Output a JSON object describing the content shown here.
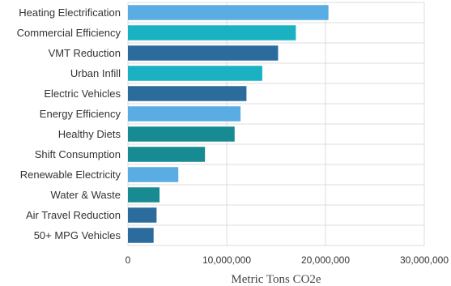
{
  "chart_data": {
    "type": "bar",
    "orientation": "horizontal",
    "categories": [
      "Heating Electrification",
      "Commercial Efficiency",
      "VMT Reduction",
      "Urban Infill",
      "Electric Vehicles",
      "Energy Efficiency",
      "Healthy Diets",
      "Shift Consumption",
      "Renewable Electricity",
      "Water & Waste",
      "Air Travel Reduction",
      "50+ MPG Vehicles"
    ],
    "values": [
      20300000,
      17000000,
      15200000,
      13600000,
      12000000,
      11400000,
      10800000,
      7800000,
      5100000,
      3200000,
      2900000,
      2600000
    ],
    "colors": [
      "#5aade2",
      "#1ab2c2",
      "#2b6c9c",
      "#1ab2c2",
      "#2b6c9c",
      "#5aade2",
      "#178b91",
      "#178b91",
      "#5aade2",
      "#178b91",
      "#2b6c9c",
      "#2b6c9c"
    ],
    "xlim": [
      0,
      30000000
    ],
    "x_ticks": [
      0,
      10000000,
      20000000,
      30000000
    ],
    "x_tick_labels": [
      "0",
      "10,000,000",
      "20,000,000",
      "30,000,000"
    ],
    "xlabel": "Metric Tons CO2e",
    "ylabel": "",
    "title": "",
    "grid": true,
    "legend": "none"
  }
}
